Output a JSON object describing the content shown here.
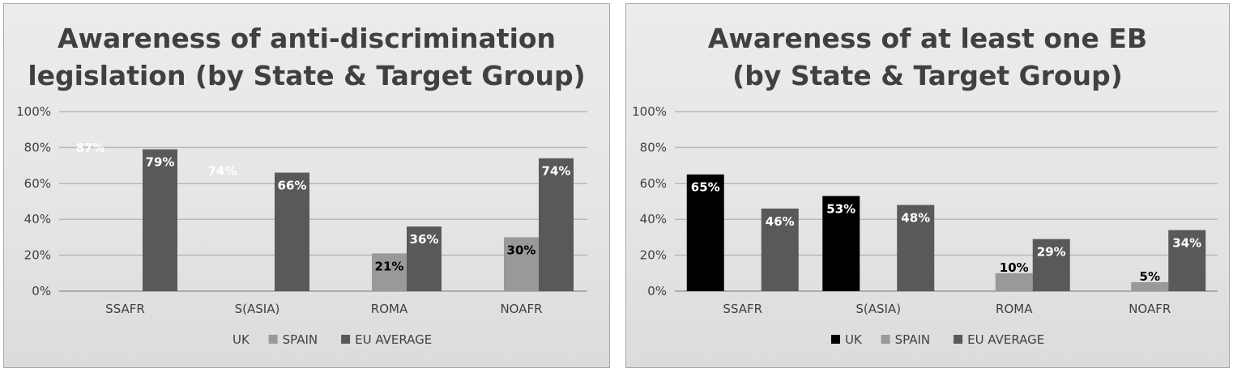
{
  "chart_data": [
    {
      "type": "bar",
      "title": "Awareness of anti-discrimination\nlegislation (by State & Target Group)",
      "categories": [
        "SSAFR",
        "S(ASIA)",
        "ROMA",
        "NOAFR"
      ],
      "ylim": [
        0,
        100
      ],
      "yticks": [
        "0%",
        "20%",
        "40%",
        "60%",
        "80%",
        "100%"
      ],
      "grid": true,
      "legend_position": "bottom",
      "series": [
        {
          "name": "UK",
          "color": "#ffffff",
          "values": [
            87,
            74,
            null,
            null
          ],
          "labels": [
            "87%",
            "74%",
            "",
            ""
          ],
          "label_color": "#ffffff"
        },
        {
          "name": "SPAIN",
          "color": "#999999",
          "values": [
            null,
            null,
            21,
            30
          ],
          "labels": [
            "",
            "",
            "21%",
            "30%"
          ],
          "label_color": "#000000"
        },
        {
          "name": "EU AVERAGE",
          "color": "#595959",
          "values": [
            79,
            66,
            36,
            74
          ],
          "labels": [
            "79%",
            "66%",
            "36%",
            "74%"
          ],
          "label_color": "#ffffff"
        }
      ]
    },
    {
      "type": "bar",
      "title": "Awareness of at least one EB\n(by State & Target Group)",
      "categories": [
        "SSAFR",
        "S(ASIA)",
        "ROMA",
        "NOAFR"
      ],
      "ylim": [
        0,
        100
      ],
      "yticks": [
        "0%",
        "20%",
        "40%",
        "60%",
        "80%",
        "100%"
      ],
      "grid": true,
      "legend_position": "bottom",
      "series": [
        {
          "name": "UK",
          "color": "#000000",
          "values": [
            65,
            53,
            null,
            null
          ],
          "labels": [
            "65%",
            "53%",
            "",
            ""
          ],
          "label_color": "#ffffff"
        },
        {
          "name": "SPAIN",
          "color": "#999999",
          "values": [
            null,
            null,
            10,
            5
          ],
          "labels": [
            "",
            "",
            "10%",
            "5%"
          ],
          "label_color": "#000000"
        },
        {
          "name": "EU AVERAGE",
          "color": "#595959",
          "values": [
            46,
            48,
            29,
            34
          ],
          "labels": [
            "46%",
            "48%",
            "29%",
            "34%"
          ],
          "label_color": "#ffffff"
        }
      ]
    }
  ]
}
